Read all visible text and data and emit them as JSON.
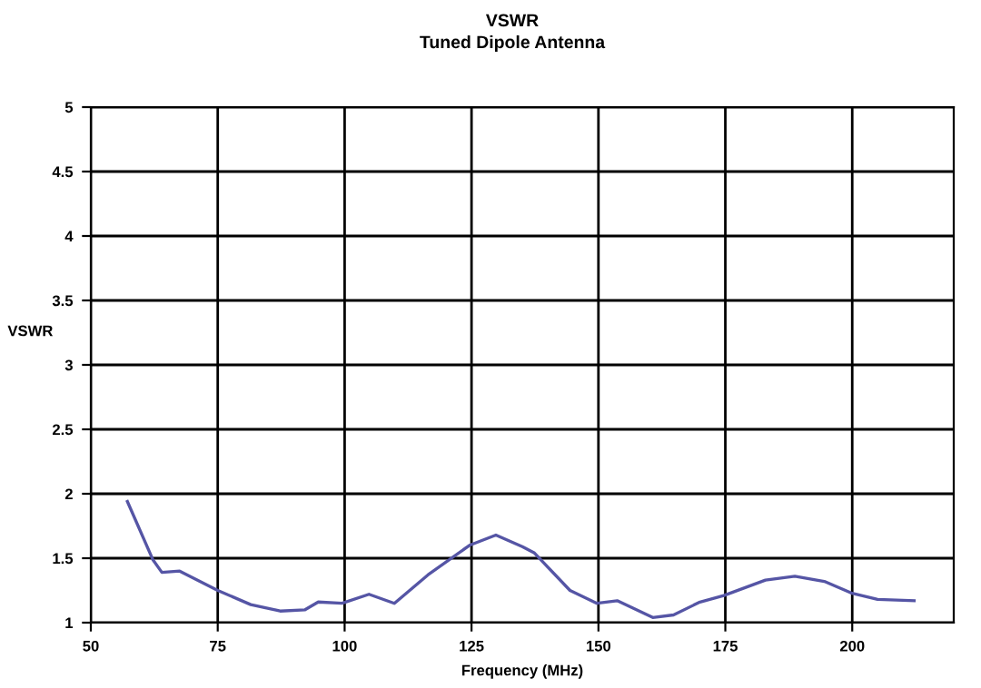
{
  "chart_data": {
    "type": "line",
    "title": "VSWR",
    "subtitle": "Tuned Dipole Antenna",
    "xlabel": "Frequency (MHz)",
    "ylabel": "VSWR",
    "x": [
      57.2,
      62.2,
      64,
      67.5,
      75,
      81.5,
      87.3,
      92.2,
      94.8,
      99.5,
      104.8,
      109.8,
      116.4,
      124.6,
      129.8,
      135,
      137.4,
      144.4,
      149.7,
      153.7,
      160.7,
      164.8,
      170,
      174.7,
      182.9,
      188.7,
      194.5,
      199.8,
      205,
      212.2
    ],
    "series": [
      {
        "color": "#5555a5",
        "values": [
          1.94,
          1.49,
          1.39,
          1.4,
          1.25,
          1.14,
          1.09,
          1.1,
          1.16,
          1.15,
          1.22,
          1.15,
          1.37,
          1.6,
          1.68,
          1.59,
          1.54,
          1.25,
          1.15,
          1.17,
          1.04,
          1.06,
          1.16,
          1.21,
          1.33,
          1.36,
          1.32,
          1.23,
          1.18,
          1.17
        ]
      }
    ],
    "xlim": [
      50,
      220
    ],
    "xticks": [
      50,
      75,
      100,
      125,
      150,
      175,
      200
    ],
    "ylim": [
      1,
      5
    ],
    "yticks": [
      1,
      1.5,
      2,
      2.5,
      3,
      3.5,
      4,
      4.5,
      5
    ],
    "grid": true,
    "legend": false,
    "marker": "none",
    "line_style": "solid"
  }
}
